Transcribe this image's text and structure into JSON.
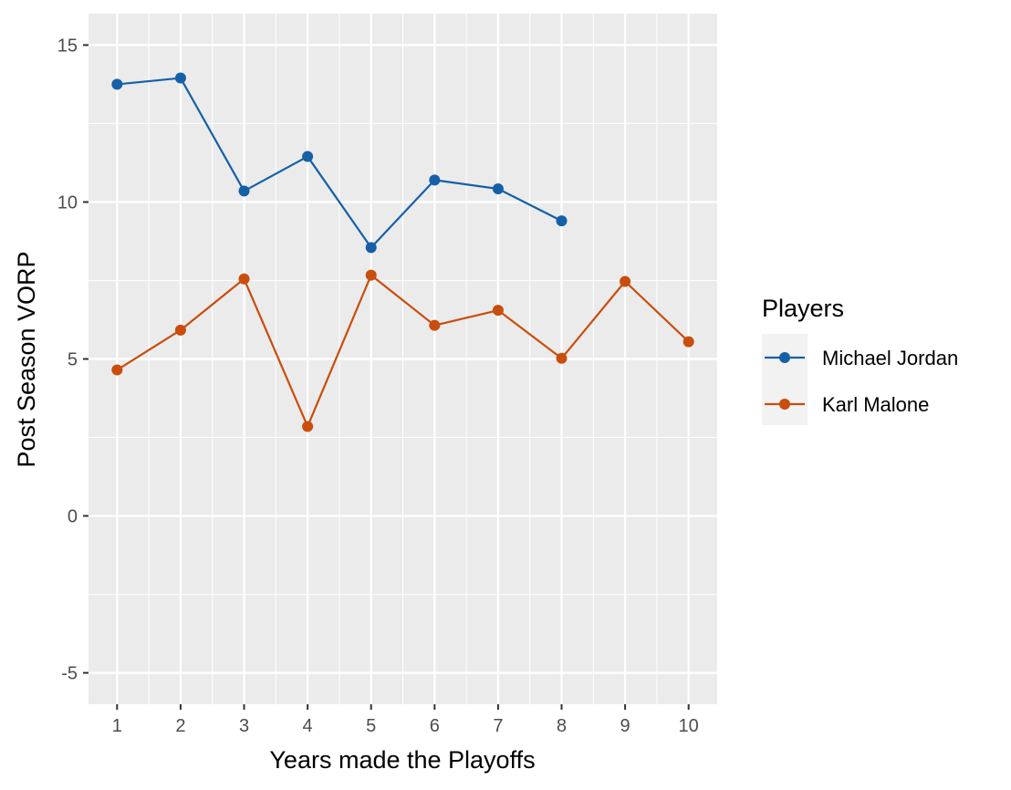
{
  "chart_data": {
    "type": "line",
    "title": "",
    "xlabel": "Years made the Playoffs",
    "ylabel": "Post Season VORP",
    "x": [
      1,
      2,
      3,
      4,
      5,
      6,
      7,
      8,
      9,
      10
    ],
    "x_ticks": [
      "1",
      "2",
      "3",
      "4",
      "5",
      "6",
      "7",
      "8",
      "9",
      "10"
    ],
    "y_ticks": [
      "-5",
      "0",
      "5",
      "10",
      "15"
    ],
    "xlim": [
      0.55,
      10.45
    ],
    "ylim": [
      -6.0,
      16.0
    ],
    "grid": true,
    "legend": {
      "title": "Players",
      "placement": "right"
    },
    "series": [
      {
        "name": "Michael Jordan",
        "color": "#1560A6",
        "x": [
          1,
          2,
          3,
          4,
          5,
          6,
          7,
          8
        ],
        "values": [
          13.75,
          13.95,
          10.35,
          11.45,
          8.55,
          10.7,
          10.42,
          9.4
        ]
      },
      {
        "name": "Karl Malone",
        "color": "#C94D0C",
        "x": [
          1,
          2,
          3,
          4,
          5,
          6,
          7,
          8,
          9,
          10
        ],
        "values": [
          4.65,
          5.92,
          7.55,
          2.85,
          7.67,
          6.07,
          6.55,
          5.02,
          7.47,
          5.55
        ]
      }
    ]
  }
}
